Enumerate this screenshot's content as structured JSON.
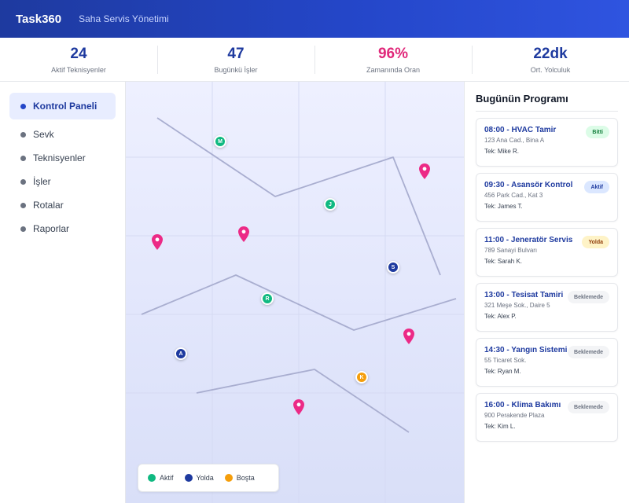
{
  "header": {
    "brand": "Task360",
    "subtitle": "Saha Servis Yönetimi"
  },
  "stats": [
    {
      "value": "24",
      "label": "Aktif Teknisyenler"
    },
    {
      "value": "47",
      "label": "Bugünkü İşler"
    },
    {
      "value": "96%",
      "label": "Zamanında Oran"
    },
    {
      "value": "22dk",
      "label": "Ort. Yolculuk"
    }
  ],
  "sidebar": {
    "items": [
      {
        "label": "Kontrol Paneli"
      },
      {
        "label": "Sevk"
      },
      {
        "label": "Teknisyenler"
      },
      {
        "label": "İşler"
      },
      {
        "label": "Rotalar"
      },
      {
        "label": "Raporlar"
      }
    ]
  },
  "map": {
    "markers": [
      {
        "letter": "M",
        "status": "active"
      },
      {
        "letter": "J",
        "status": "active"
      },
      {
        "letter": "S",
        "status": "en_route"
      },
      {
        "letter": "R",
        "status": "active"
      },
      {
        "letter": "A",
        "status": "en_route"
      },
      {
        "letter": "K",
        "status": "idle"
      }
    ],
    "legend": [
      {
        "label": "Aktif",
        "color": "#10b981"
      },
      {
        "label": "Yolda",
        "color": "#1e3a9f"
      },
      {
        "label": "Boşta",
        "color": "#f59e0b"
      }
    ]
  },
  "schedule": {
    "title": "Bugünün Programı",
    "jobs": [
      {
        "title": "08:00 - HVAC Tamir",
        "address": "123 Ana Cad., Bina A",
        "tech": "Tek: Mike R.",
        "status": "Bitti"
      },
      {
        "title": "09:30 - Asansör Kontrol",
        "address": "456 Park Cad., Kat 3",
        "tech": "Tek: James T.",
        "status": "Aktif"
      },
      {
        "title": "11:00 - Jeneratör Servis",
        "address": "789 Sanayi Bulvarı",
        "tech": "Tek: Sarah K.",
        "status": "Yolda"
      },
      {
        "title": "13:00 - Tesisat Tamiri",
        "address": "321 Meşe Sok., Daire 5",
        "tech": "Tek: Alex P.",
        "status": "Beklemede"
      },
      {
        "title": "14:30 - Yangın Sistemi",
        "address": "55 Ticaret Sok.",
        "tech": "Tek: Ryan M.",
        "status": "Beklemede"
      },
      {
        "title": "16:00 - Klima Bakımı",
        "address": "900 Perakende Plaza",
        "tech": "Tek: Kim L.",
        "status": "Beklemede"
      }
    ]
  }
}
